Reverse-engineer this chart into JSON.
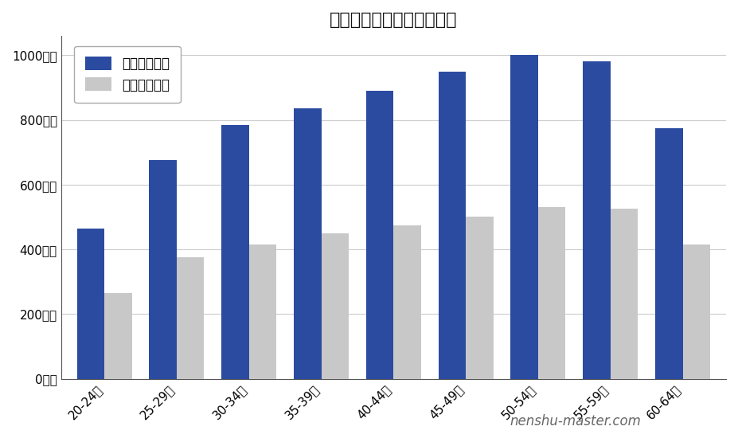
{
  "title": "ダイセルの年齢別平均年収",
  "categories": [
    "20-24歳",
    "25-29歳",
    "30-34歳",
    "35-39歳",
    "40-44歳",
    "45-49歳",
    "50-54歳",
    "55-59歳",
    "60-64歳"
  ],
  "series1_label": "想定平均年収",
  "series2_label": "全国平均年収",
  "series1_values": [
    465,
    675,
    785,
    835,
    890,
    950,
    1000,
    980,
    775
  ],
  "series2_values": [
    265,
    375,
    415,
    450,
    475,
    500,
    530,
    525,
    415
  ],
  "series1_color": "#2b4ba0",
  "series2_color": "#c8c8c8",
  "yticks": [
    0,
    200,
    400,
    600,
    800,
    1000
  ],
  "ytick_labels": [
    "0万円",
    "200万円",
    "400万円",
    "600万円",
    "800万円",
    "1000万円"
  ],
  "ylim": [
    0,
    1060
  ],
  "bar_width": 0.38,
  "watermark": "nenshu-master.com",
  "background_color": "#ffffff",
  "grid_color": "#cccccc",
  "title_fontsize": 16,
  "legend_fontsize": 12,
  "tick_fontsize": 11,
  "watermark_fontsize": 12
}
